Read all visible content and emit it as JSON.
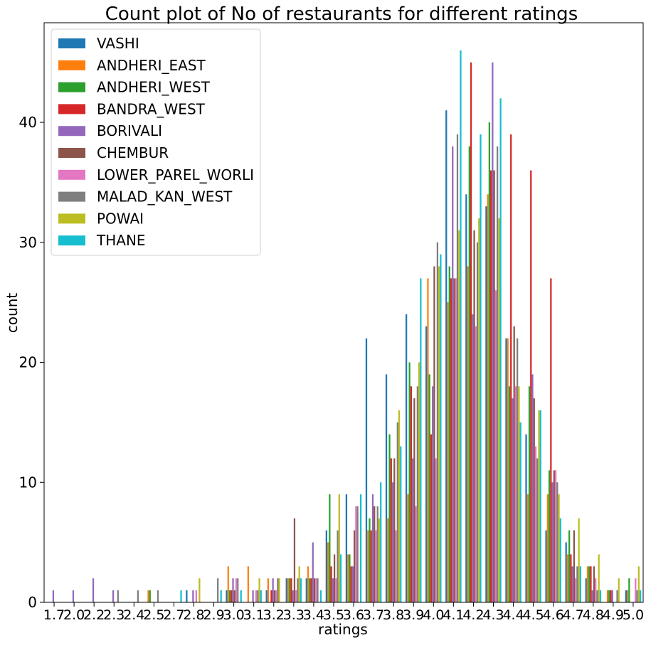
{
  "chart_data": {
    "type": "bar",
    "title": "Count plot of No of restaurants for different ratings",
    "xlabel": "ratings",
    "ylabel": "count",
    "ylim": [
      0,
      48.3
    ],
    "yticks": [
      0,
      10,
      20,
      30,
      40
    ],
    "grid": false,
    "legend_position": "top-left",
    "categories": [
      "1.7",
      "2.0",
      "2.2",
      "2.3",
      "2.4",
      "2.5",
      "2.7",
      "2.8",
      "2.9",
      "3.0",
      "3.1",
      "3.2",
      "3.3",
      "3.4",
      "3.5",
      "3.6",
      "3.7",
      "3.8",
      "3.9",
      "4.0",
      "4.1",
      "4.2",
      "4.3",
      "4.4",
      "4.5",
      "4.6",
      "4.7",
      "4.8",
      "4.9",
      "5.0"
    ],
    "series": [
      {
        "name": "VASHI",
        "color": "#1f77b4",
        "values": [
          0,
          0,
          0,
          0,
          0,
          0,
          0,
          1,
          0,
          1,
          0,
          1,
          2,
          2,
          6,
          9,
          22,
          19,
          24,
          23,
          41,
          34,
          33,
          22,
          14,
          6,
          5,
          2,
          0,
          1
        ]
      },
      {
        "name": "ANDHERI_EAST",
        "color": "#ff7f0e",
        "values": [
          0,
          0,
          0,
          0,
          0,
          1,
          0,
          0,
          0,
          3,
          3,
          2,
          2,
          3,
          5,
          4,
          6,
          7,
          9,
          27,
          25,
          28,
          34,
          22,
          9,
          9,
          4,
          3,
          1,
          1
        ]
      },
      {
        "name": "ANDHERI_WEST",
        "color": "#2ca02c",
        "values": [
          0,
          0,
          0,
          0,
          0,
          1,
          0,
          0,
          0,
          1,
          0,
          0,
          2,
          2,
          9,
          4,
          7,
          14,
          20,
          19,
          28,
          38,
          40,
          18,
          18,
          11,
          6,
          3,
          1,
          2
        ]
      },
      {
        "name": "BANDRA_WEST",
        "color": "#d62728",
        "values": [
          0,
          0,
          0,
          0,
          0,
          0,
          0,
          0,
          0,
          1,
          0,
          1,
          2,
          2,
          3,
          3,
          6,
          12,
          18,
          14,
          27,
          45,
          36,
          39,
          36,
          27,
          4,
          3,
          1,
          0
        ]
      },
      {
        "name": "BORIVALI",
        "color": "#9467bd",
        "values": [
          1,
          1,
          2,
          1,
          0,
          0,
          0,
          1,
          0,
          2,
          1,
          2,
          1,
          5,
          2,
          3,
          9,
          10,
          12,
          18,
          38,
          24,
          45,
          17,
          19,
          10,
          3,
          1,
          1,
          0
        ]
      },
      {
        "name": "CHEMBUR",
        "color": "#8c564b",
        "values": [
          0,
          0,
          0,
          0,
          0,
          0,
          0,
          0,
          0,
          1,
          0,
          1,
          7,
          2,
          4,
          6,
          8,
          12,
          17,
          28,
          27,
          31,
          36,
          23,
          17,
          11,
          6,
          3,
          0,
          0
        ]
      },
      {
        "name": "LOWER_PAREL_WORLI",
        "color": "#e377c2",
        "values": [
          0,
          0,
          0,
          0,
          0,
          0,
          0,
          1,
          0,
          2,
          1,
          1,
          1,
          2,
          2,
          8,
          6,
          6,
          8,
          12,
          27,
          23,
          26,
          18,
          13,
          11,
          2,
          2,
          0,
          2
        ]
      },
      {
        "name": "MALAD_KAN_WEST",
        "color": "#7f7f7f",
        "values": [
          0,
          0,
          0,
          1,
          1,
          1,
          0,
          0,
          2,
          2,
          1,
          2,
          2,
          2,
          6,
          8,
          8,
          15,
          18,
          30,
          39,
          30,
          38,
          22,
          12,
          10,
          3,
          1,
          1,
          1
        ]
      },
      {
        "name": "POWAI",
        "color": "#bcbd22",
        "values": [
          0,
          0,
          0,
          0,
          0,
          0,
          0,
          2,
          0,
          0,
          2,
          2,
          3,
          0,
          9,
          0,
          7,
          16,
          20,
          28,
          31,
          32,
          32,
          18,
          16,
          9,
          7,
          4,
          2,
          3
        ]
      },
      {
        "name": "THANE",
        "color": "#17becf",
        "values": [
          0,
          0,
          0,
          0,
          0,
          0,
          1,
          0,
          1,
          1,
          1,
          0,
          2,
          1,
          4,
          9,
          10,
          13,
          27,
          29,
          46,
          39,
          42,
          15,
          16,
          7,
          3,
          1,
          0,
          1
        ]
      }
    ]
  }
}
